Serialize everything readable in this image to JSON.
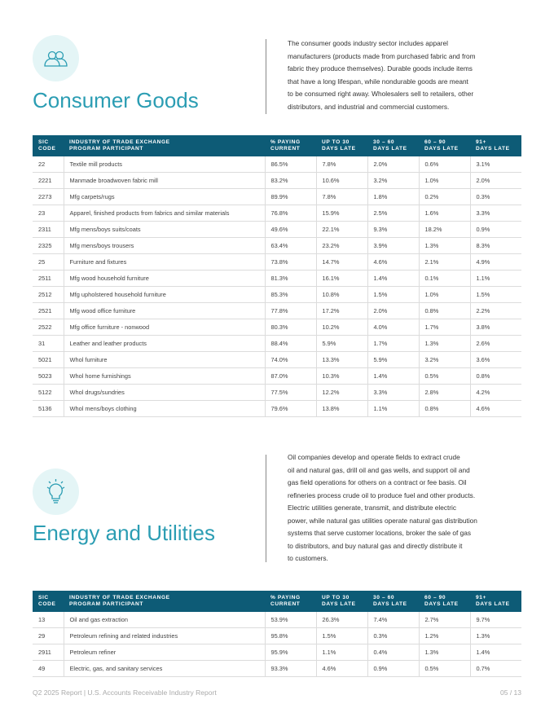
{
  "sections": [
    {
      "title": "Consumer Goods",
      "paragraph": [
        "The consumer goods industry sector includes apparel",
        "manufacturers (products made from purchased fabric and from",
        "fabric they produce themselves). Durable goods include items",
        "that have a long lifespan, while nondurable goods are meant",
        "to be consumed right away. Wholesalers sell to retailers, other",
        "distributors, and industrial and commercial customers."
      ],
      "table": {
        "header": [
          [
            "SIC",
            "CODE"
          ],
          [
            "INDUSTRY OF TRADE EXCHANGE",
            "PROGRAM PARTICIPANT"
          ],
          [
            "% PAYING",
            "CURRENT"
          ],
          [
            "UP TO 30",
            "DAYS LATE"
          ],
          [
            "30 – 60",
            "DAYS LATE"
          ],
          [
            "60 – 90",
            "DAYS LATE"
          ],
          [
            "91+",
            "DAYS LATE"
          ]
        ],
        "rows": [
          [
            "22",
            "Textile mill products",
            "86.5%",
            "7.8%",
            "2.0%",
            "0.6%",
            "3.1%"
          ],
          [
            "2221",
            "Manmade broadwoven fabric mill",
            "83.2%",
            "10.6%",
            "3.2%",
            "1.0%",
            "2.0%"
          ],
          [
            "2273",
            "Mfg carpets/rugs",
            "89.9%",
            "7.8%",
            "1.8%",
            "0.2%",
            "0.3%"
          ],
          [
            "23",
            "Apparel, finished products from fabrics and similar materials",
            "76.8%",
            "15.9%",
            "2.5%",
            "1.6%",
            "3.3%"
          ],
          [
            "2311",
            "Mfg mens/boys suits/coats",
            "49.6%",
            "22.1%",
            "9.3%",
            "18.2%",
            "0.9%"
          ],
          [
            "2325",
            "Mfg mens/boys trousers",
            "63.4%",
            "23.2%",
            "3.9%",
            "1.3%",
            "8.3%"
          ],
          [
            "25",
            "Furniture and fixtures",
            "73.8%",
            "14.7%",
            "4.6%",
            "2.1%",
            "4.9%"
          ],
          [
            "2511",
            "Mfg wood household furniture",
            "81.3%",
            "16.1%",
            "1.4%",
            "0.1%",
            "1.1%"
          ],
          [
            "2512",
            "Mfg upholstered household furniture",
            "85.3%",
            "10.8%",
            "1.5%",
            "1.0%",
            "1.5%"
          ],
          [
            "2521",
            "Mfg wood office furniture",
            "77.8%",
            "17.2%",
            "2.0%",
            "0.8%",
            "2.2%"
          ],
          [
            "2522",
            "Mfg office furniture - nonwood",
            "80.3%",
            "10.2%",
            "4.0%",
            "1.7%",
            "3.8%"
          ],
          [
            "31",
            "Leather and leather products",
            "88.4%",
            "5.9%",
            "1.7%",
            "1.3%",
            "2.6%"
          ],
          [
            "5021",
            "Whol furniture",
            "74.0%",
            "13.3%",
            "5.9%",
            "3.2%",
            "3.6%"
          ],
          [
            "5023",
            "Whol home furnishings",
            "87.0%",
            "10.3%",
            "1.4%",
            "0.5%",
            "0.8%"
          ],
          [
            "5122",
            "Whol drugs/sundries",
            "77.5%",
            "12.2%",
            "3.3%",
            "2.8%",
            "4.2%"
          ],
          [
            "5136",
            "Whol mens/boys clothing",
            "79.6%",
            "13.8%",
            "1.1%",
            "0.8%",
            "4.6%"
          ]
        ]
      }
    },
    {
      "title": "Energy and Utilities",
      "paragraph": [
        "Oil companies develop and operate fields to extract crude",
        "oil and natural gas, drill oil and gas wells, and support oil and",
        "gas field operations for others on a contract or fee basis. Oil",
        "refineries process crude oil to produce fuel and other products.",
        "Electric utilities generate, transmit, and distribute electric",
        "power, while natural gas utilities operate natural gas distribution",
        "systems that serve customer locations, broker the sale of gas",
        "to distributors, and buy natural gas and directly distribute it",
        "to customers."
      ],
      "table": {
        "header": [
          [
            "SIC",
            "CODE"
          ],
          [
            "INDUSTRY OF TRADE EXCHANGE",
            "PROGRAM PARTICIPANT"
          ],
          [
            "% PAYING",
            "CURRENT"
          ],
          [
            "UP TO 30",
            "DAYS LATE"
          ],
          [
            "30 – 60",
            "DAYS LATE"
          ],
          [
            "60 – 90",
            "DAYS LATE"
          ],
          [
            "91+",
            "DAYS LATE"
          ]
        ],
        "rows": [
          [
            "13",
            "Oil and gas extraction",
            "53.9%",
            "26.3%",
            "7.4%",
            "2.7%",
            "9.7%"
          ],
          [
            "29",
            "Petroleum refining and related industries",
            "95.8%",
            "1.5%",
            "0.3%",
            "1.2%",
            "1.3%"
          ],
          [
            "2911",
            "Petroleum refiner",
            "95.9%",
            "1.1%",
            "0.4%",
            "1.3%",
            "1.4%"
          ],
          [
            "49",
            "Electric, gas, and sanitary services",
            "93.3%",
            "4.6%",
            "0.9%",
            "0.5%",
            "0.7%"
          ]
        ]
      }
    }
  ],
  "footer": {
    "left": "Q2 2025 Report | U.S. Accounts Receivable Industry Report",
    "right": "05 / 13"
  }
}
